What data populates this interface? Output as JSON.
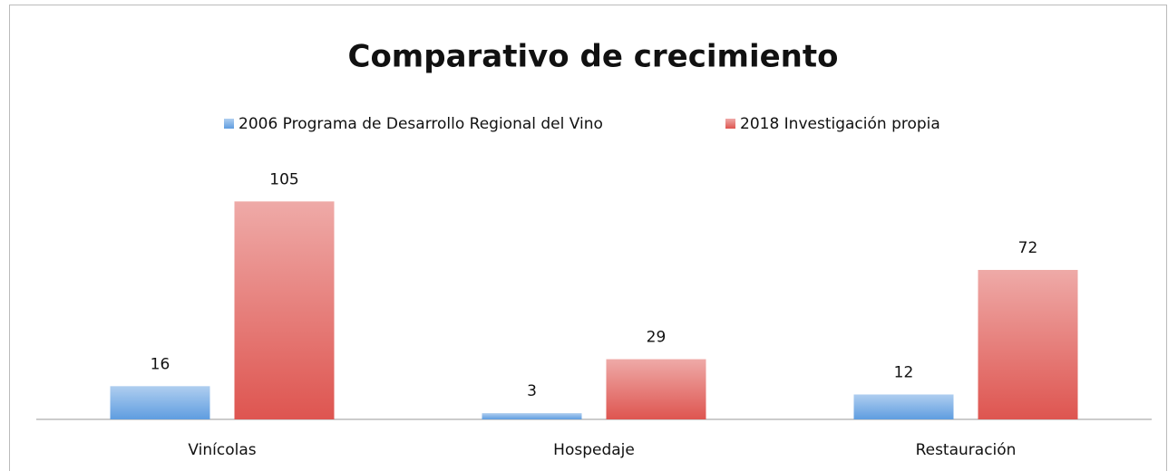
{
  "chart_data": {
    "type": "bar",
    "title": "Comparativo de crecimiento",
    "categories": [
      "Vinícolas",
      "Hospedaje",
      "Restauración"
    ],
    "series": [
      {
        "name": "2006 Programa de Desarrollo Regional del Vino",
        "color": "#5f9de0",
        "values": [
          16,
          3,
          12
        ]
      },
      {
        "name": "2018 Investigación propia",
        "color": "#de5550",
        "values": [
          105,
          29,
          72
        ]
      }
    ],
    "ylim": [
      0,
      120
    ]
  }
}
